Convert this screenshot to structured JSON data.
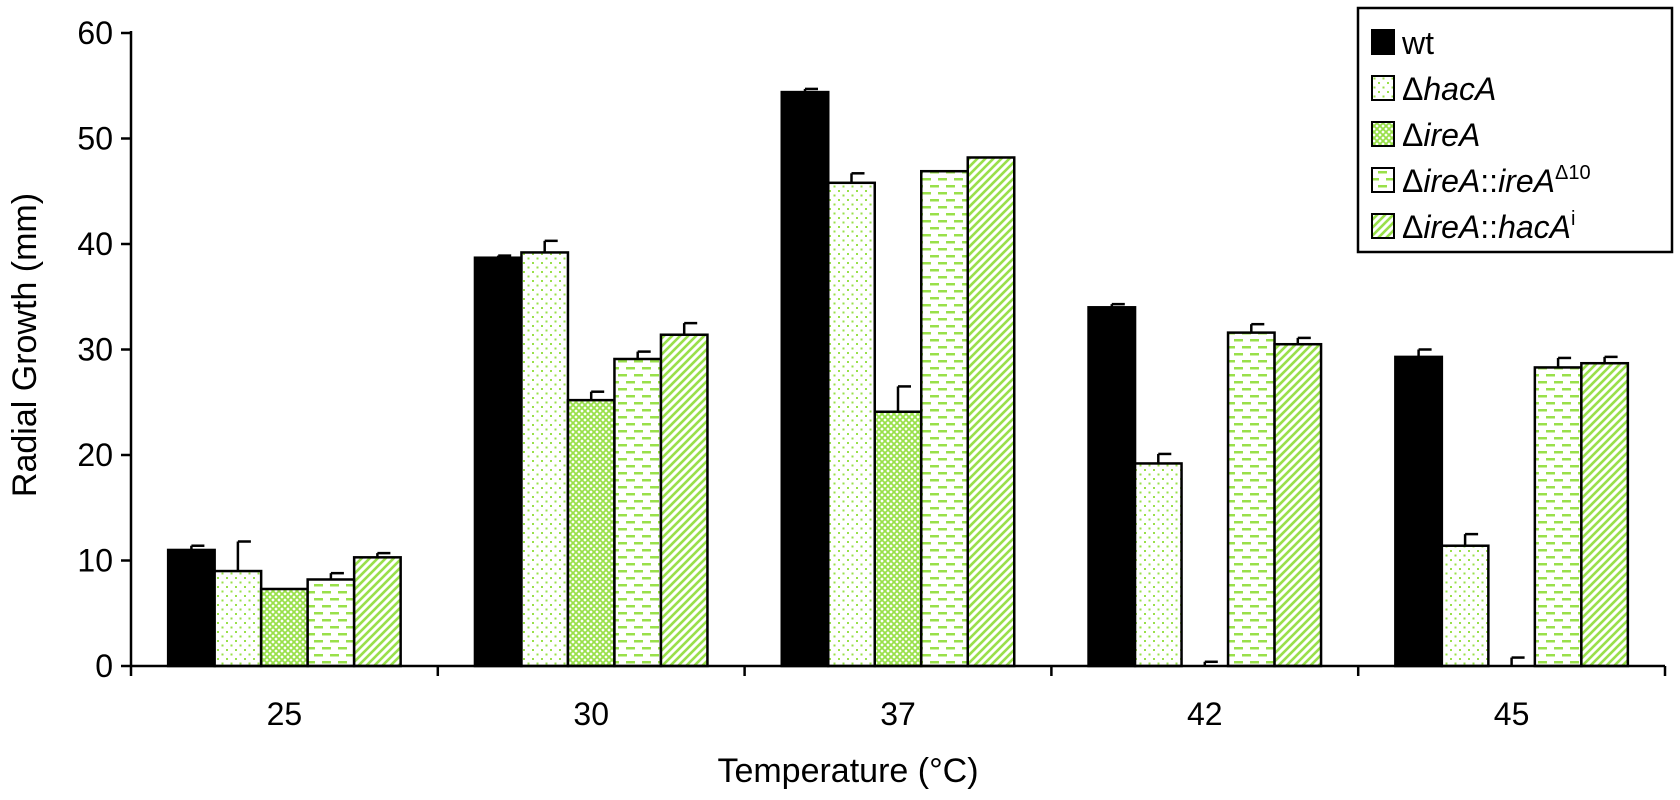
{
  "chart_data": {
    "type": "bar",
    "title": "",
    "xlabel": "Temperature (°C)",
    "ylabel": "Radial Growth (mm)",
    "ylim": [
      0,
      60
    ],
    "yticks": [
      0,
      10,
      20,
      30,
      40,
      50,
      60
    ],
    "categories": [
      "25",
      "30",
      "37",
      "42",
      "45"
    ],
    "legend_position": "top-right",
    "grid": false,
    "series": [
      {
        "name": "wt",
        "pattern": "solid",
        "color": "#000000",
        "values": [
          11.0,
          38.7,
          54.4,
          34.0,
          29.3
        ],
        "errors": [
          0.4,
          0.2,
          0.3,
          0.3,
          0.7
        ]
      },
      {
        "name_parts": [
          "Δ",
          "hacA"
        ],
        "pattern": "dots",
        "color": "#99e04a",
        "values": [
          9.0,
          39.2,
          45.8,
          19.2,
          11.4
        ],
        "errors": [
          2.8,
          1.1,
          0.9,
          0.9,
          1.1
        ]
      },
      {
        "name_parts": [
          "Δ",
          "ireA"
        ],
        "pattern": "crosshatch",
        "color": "#99e04a",
        "values": [
          7.3,
          25.2,
          24.1,
          0,
          0
        ],
        "errors": [
          0.0,
          0.8,
          2.4,
          0.4,
          0.8
        ]
      },
      {
        "name_parts": [
          "Δ",
          "ireA",
          "::",
          "ireA",
          "Δ10"
        ],
        "pattern": "dashes",
        "color": "#99e04a",
        "values": [
          8.2,
          29.1,
          46.9,
          31.6,
          28.3
        ],
        "errors": [
          0.6,
          0.7,
          0.0,
          0.8,
          0.9
        ]
      },
      {
        "name_parts": [
          "Δ",
          "ireA",
          "::",
          "hacA",
          "i"
        ],
        "pattern": "diagonal",
        "color": "#99e04a",
        "values": [
          10.3,
          31.4,
          48.2,
          30.5,
          28.7
        ],
        "errors": [
          0.4,
          1.1,
          0.0,
          0.6,
          0.6
        ]
      }
    ]
  }
}
